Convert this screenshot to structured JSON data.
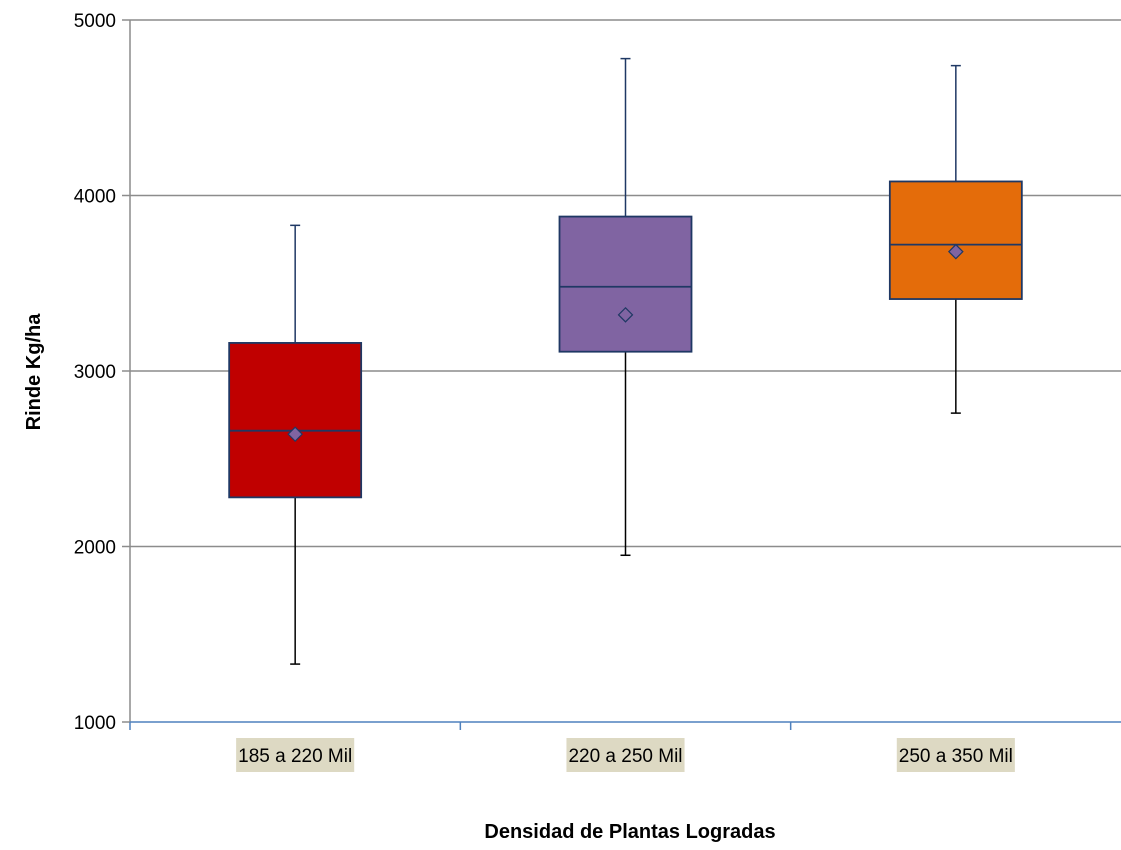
{
  "chart_data": {
    "type": "box",
    "title": "",
    "xlabel": "Densidad de Plantas Logradas",
    "ylabel": "Rinde Kg/ha",
    "ylim": [
      1000,
      5000
    ],
    "yticks": [
      1000,
      2000,
      3000,
      4000,
      5000
    ],
    "grid": true,
    "categories": [
      "185 a 220 Mil",
      "220 a 250 Mil",
      "250 a 350 Mil"
    ],
    "boxes": [
      {
        "category": "185 a 220 Mil",
        "min": 1330,
        "q1": 2280,
        "median": 2660,
        "q3": 3160,
        "max": 3830,
        "mean": 2640,
        "color": "#c00000"
      },
      {
        "category": "220 a 250 Mil",
        "min": 1950,
        "q1": 3110,
        "median": 3480,
        "q3": 3880,
        "max": 4780,
        "mean": 3320,
        "color": "#8064a2"
      },
      {
        "category": "250 a 350 Mil",
        "min": 2760,
        "q1": 3410,
        "median": 3720,
        "q3": 4080,
        "max": 4740,
        "mean": 3680,
        "color": "#e46c0a"
      }
    ],
    "colors": {
      "box_border": "#1f3864",
      "mean_marker": "#8064a2",
      "grid": "#8c8c8c",
      "axis": "#4f81bd",
      "category_label_bg": "#ddd9c3"
    }
  }
}
